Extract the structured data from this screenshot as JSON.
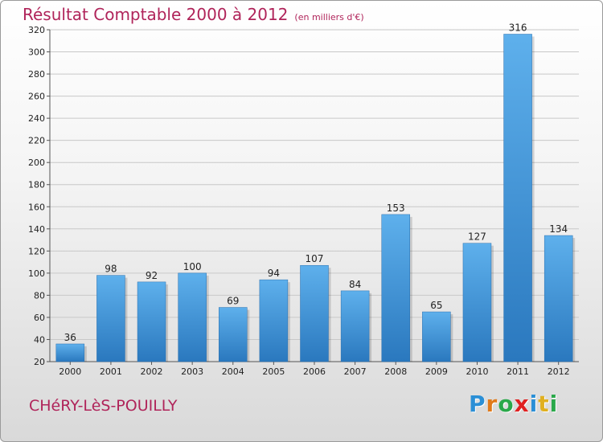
{
  "title": "Résultat Comptable 2000 à 2012",
  "subtitle": "(en milliers d'€)",
  "commune": "CHéRY-LèS-POUILLY",
  "logo": {
    "letters": [
      {
        "ch": "P",
        "color": "#2a8fd6"
      },
      {
        "ch": "r",
        "color": "#e07a1a"
      },
      {
        "ch": "o",
        "color": "#2aa84a"
      },
      {
        "ch": "x",
        "color": "#e02020"
      },
      {
        "ch": "i",
        "color": "#2a8fd6"
      },
      {
        "ch": "t",
        "color": "#e0b020"
      },
      {
        "ch": "i",
        "color": "#2aa84a"
      }
    ]
  },
  "chart_data": {
    "type": "bar",
    "categories": [
      "2000",
      "2001",
      "2002",
      "2003",
      "2004",
      "2005",
      "2006",
      "2007",
      "2008",
      "2009",
      "2010",
      "2011",
      "2012"
    ],
    "values": [
      36,
      98,
      92,
      100,
      69,
      94,
      107,
      84,
      153,
      65,
      127,
      316,
      134
    ],
    "ylim": [
      20,
      320
    ],
    "yticks": [
      20,
      40,
      60,
      80,
      100,
      120,
      140,
      160,
      180,
      200,
      220,
      240,
      260,
      280,
      300,
      320
    ],
    "grid": true,
    "bar_color": "#3d94d8"
  }
}
